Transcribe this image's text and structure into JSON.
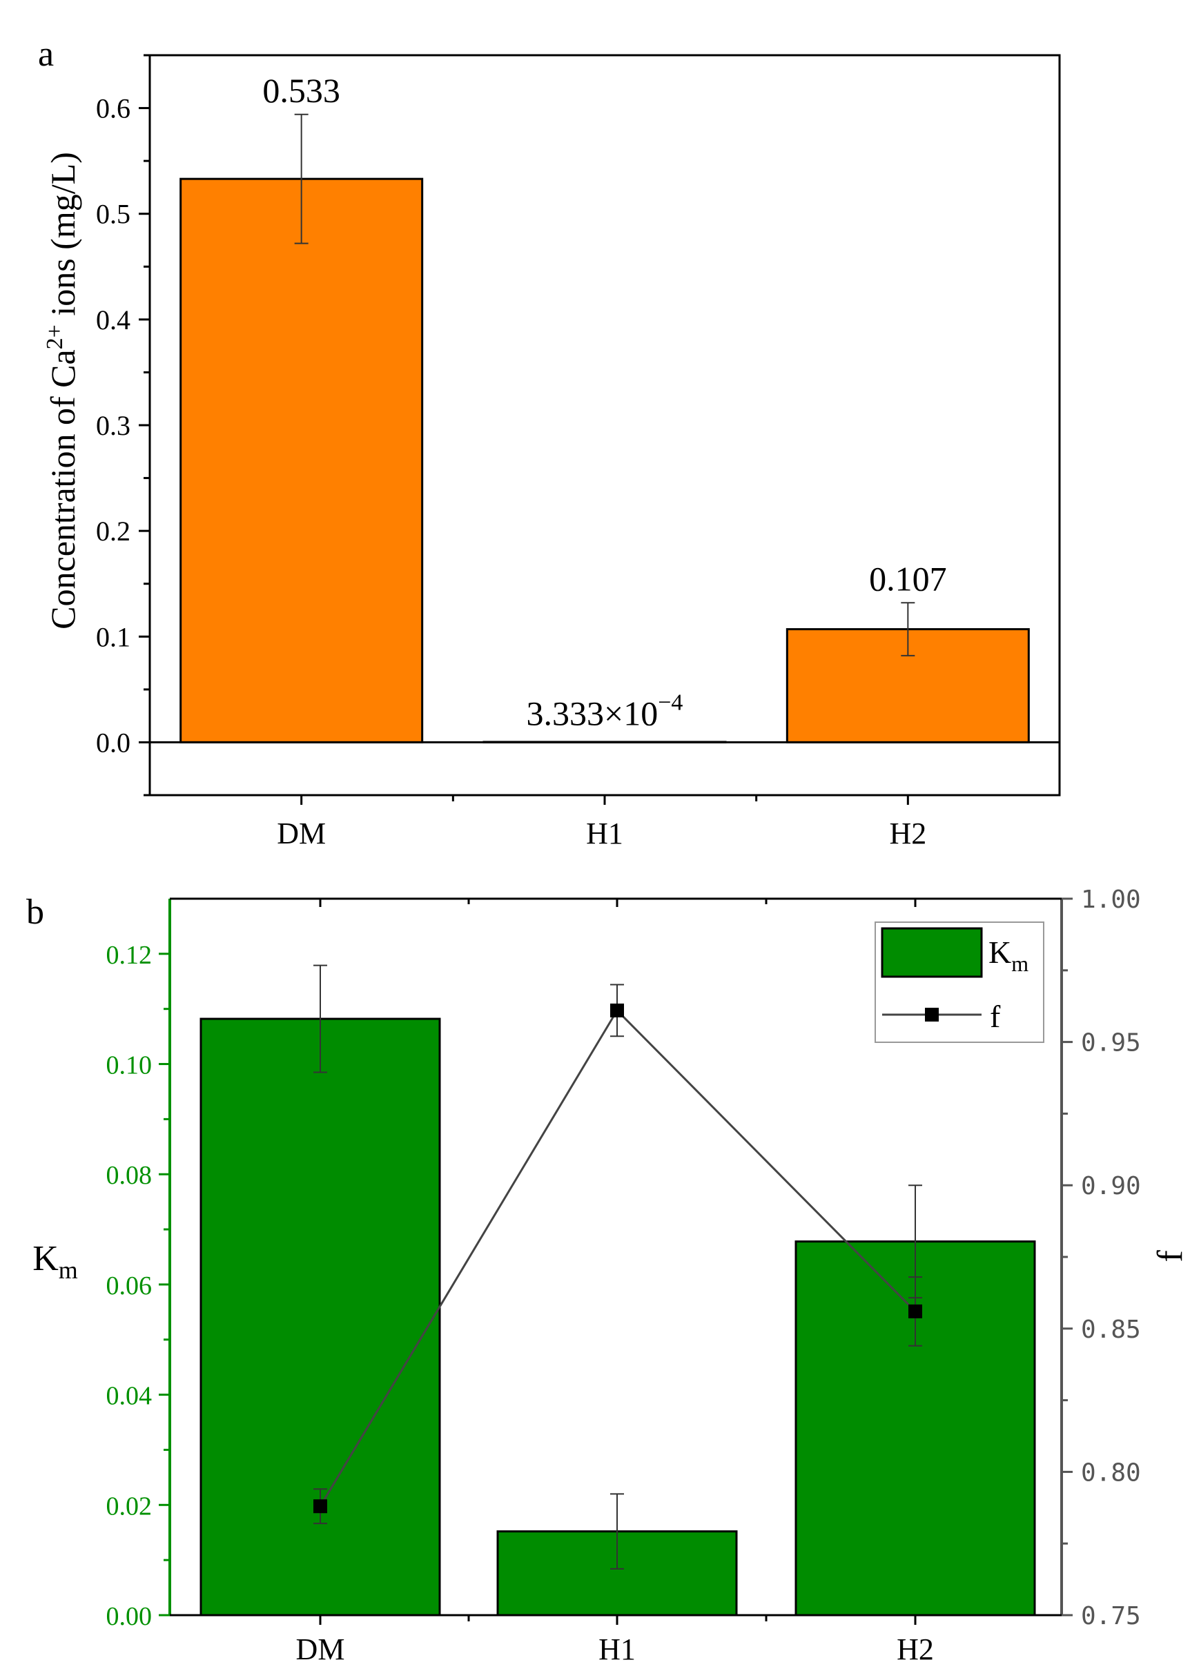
{
  "colors": {
    "bar_a": "#ff8000",
    "bar_b": "#008c00",
    "left_axis_b": "#009000",
    "right_axis_b": "#555555",
    "line_f": "#444444",
    "marker_f": "#000000"
  },
  "chart_data": [
    {
      "panel_label": "a",
      "type": "bar",
      "categories": [
        "DM",
        "H1",
        "H2"
      ],
      "values": [
        0.533,
        0.0003333,
        0.107
      ],
      "error": [
        0.061,
        0.0,
        0.025
      ],
      "data_labels": [
        "0.533",
        "3.333×10",
        "0.107"
      ],
      "data_label_superscript": [
        "",
        "−4",
        ""
      ],
      "ylabel_main": "Concentration of Ca",
      "ylabel_sup": "2+",
      "ylabel_tail": " ions (mg/L)",
      "ylim": [
        -0.05,
        0.65
      ],
      "yticks": [
        0.0,
        0.1,
        0.2,
        0.3,
        0.4,
        0.5,
        0.6
      ],
      "ytick_labels": [
        "0.0",
        "0.1",
        "0.2",
        "0.3",
        "0.4",
        "0.5",
        "0.6"
      ],
      "grid": false
    },
    {
      "panel_label": "b",
      "type": "bar",
      "categories": [
        "DM",
        "H1",
        "H2"
      ],
      "series": [
        {
          "name": "K",
          "name_sub": "m",
          "type": "bar",
          "axis": "left",
          "values": [
            0.1082,
            0.0152,
            0.0678
          ],
          "error": [
            0.0097,
            0.0068,
            0.0102
          ]
        },
        {
          "name": "f",
          "type": "line",
          "axis": "right",
          "values": [
            0.788,
            0.961,
            0.856
          ],
          "error": [
            0.006,
            0.009,
            0.012
          ]
        }
      ],
      "ylabel_left_main": "K",
      "ylabel_left_sub": "m",
      "ylabel_right": "f",
      "ylim_left": [
        0.0,
        0.13
      ],
      "ylim_right": [
        0.75,
        1.0
      ],
      "yticks_left": [
        0.0,
        0.02,
        0.04,
        0.06,
        0.08,
        0.1,
        0.12
      ],
      "ytick_labels_left": [
        "0.00",
        "0.02",
        "0.04",
        "0.06",
        "0.08",
        "0.10",
        "0.12"
      ],
      "yticks_right": [
        0.75,
        0.8,
        0.85,
        0.9,
        0.95,
        1.0
      ],
      "ytick_labels_right": [
        "0.75",
        "0.80",
        "0.85",
        "0.90",
        "0.95",
        "1.00"
      ],
      "legend_position": "top-right",
      "grid": false
    }
  ]
}
